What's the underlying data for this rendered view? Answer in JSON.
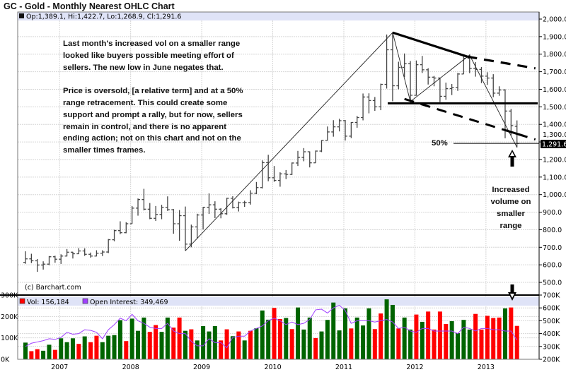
{
  "header": {
    "title": "GC - Gold - Monthly Nearest OHLC Chart",
    "ohlc_legend": "Op:1,389.1, Hi:1,422.7, Lo:1,268.9, Cl:1,291.6",
    "last_price_label": "1,291.6",
    "copyright": "(c) Barchart.com"
  },
  "annotations": {
    "main_note": [
      "Last month's increased vol on a smaller range",
      "looked like buyers possible meeting effort of",
      "sellers.  The new low in June negates that.",
      "",
      "Price is oversold, [a relative term] and at a 50%",
      "range retracement.  This could create some",
      "support and prompt a rally, but for now, sellers",
      "remain in control, and there is no apparent",
      "ending action; not on this chart and not on the",
      "smaller times frames."
    ],
    "fifty_label": "50%",
    "volume_note": [
      "Increased",
      "volume on",
      "smaller",
      "range"
    ]
  },
  "volume_legend": {
    "vol_label": "Vol: 156,184",
    "oi_label": "Open Interest: 349,469"
  },
  "colors": {
    "up_volume": "#006400",
    "down_volume": "#ff0000",
    "open_interest": "#a040ff",
    "legend_band": "#dfe3f7",
    "price_bar": "#444444",
    "last_price_bg": "#000000"
  },
  "chart_data": [
    {
      "type": "ohlc",
      "period": "monthly",
      "start": "2006-07",
      "end": "2013-06",
      "ylim": [
        500,
        2000
      ],
      "y_ticks": [
        "2,000.0",
        "1,900.0",
        "1,800.0",
        "1,700.0",
        "1,600.0",
        "1,500.0",
        "1,400.0",
        "1,300.0",
        "1,200.0",
        "1,100.0",
        "1,000.0",
        "900.0",
        "800.0",
        "700.0",
        "600.0",
        "500.0"
      ],
      "x_ticks": [
        "2007",
        "2008",
        "2009",
        "2010",
        "2011",
        "2012",
        "2013"
      ],
      "grid": true,
      "ohlc": [
        [
          614,
          677,
          606,
          634
        ],
        [
          634,
          663,
          610,
          623
        ],
        [
          623,
          633,
          560,
          599
        ],
        [
          599,
          620,
          573,
          604
        ],
        [
          604,
          650,
          598,
          646
        ],
        [
          646,
          652,
          612,
          632
        ],
        [
          632,
          660,
          605,
          650
        ],
        [
          650,
          690,
          648,
          672
        ],
        [
          672,
          674,
          636,
          663
        ],
        [
          663,
          695,
          662,
          679
        ],
        [
          679,
          694,
          651,
          660
        ],
        [
          660,
          670,
          641,
          650
        ],
        [
          650,
          683,
          648,
          666
        ],
        [
          666,
          683,
          650,
          673
        ],
        [
          673,
          747,
          667,
          743
        ],
        [
          743,
          800,
          734,
          795
        ],
        [
          795,
          848,
          775,
          783
        ],
        [
          783,
          843,
          780,
          834
        ],
        [
          834,
          935,
          834,
          923
        ],
        [
          923,
          978,
          880,
          972
        ],
        [
          972,
          1033,
          910,
          917
        ],
        [
          917,
          952,
          860,
          865
        ],
        [
          865,
          935,
          850,
          887
        ],
        [
          887,
          942,
          860,
          928
        ],
        [
          928,
          990,
          907,
          914
        ],
        [
          914,
          918,
          777,
          834
        ],
        [
          834,
          912,
          737,
          880
        ],
        [
          880,
          932,
          681,
          718
        ],
        [
          718,
          829,
          700,
          816
        ],
        [
          816,
          891,
          750,
          884
        ],
        [
          884,
          930,
          802,
          928
        ],
        [
          928,
          1007,
          890,
          942
        ],
        [
          942,
          962,
          866,
          917
        ],
        [
          917,
          923,
          865,
          891
        ],
        [
          891,
          982,
          885,
          979
        ],
        [
          979,
          991,
          921,
          927
        ],
        [
          927,
          960,
          904,
          954
        ],
        [
          954,
          965,
          930,
          955
        ],
        [
          955,
          1025,
          943,
          1008
        ],
        [
          1008,
          1072,
          1003,
          1040
        ],
        [
          1040,
          1195,
          1035,
          1182
        ],
        [
          1182,
          1227,
          1076,
          1096
        ],
        [
          1096,
          1163,
          1073,
          1081
        ],
        [
          1081,
          1127,
          1045,
          1118
        ],
        [
          1118,
          1140,
          1088,
          1115
        ],
        [
          1115,
          1183,
          1112,
          1180
        ],
        [
          1180,
          1249,
          1163,
          1212
        ],
        [
          1212,
          1265,
          1190,
          1244
        ],
        [
          1244,
          1246,
          1155,
          1181
        ],
        [
          1181,
          1251,
          1181,
          1248
        ],
        [
          1248,
          1310,
          1242,
          1309
        ],
        [
          1309,
          1388,
          1307,
          1357
        ],
        [
          1357,
          1424,
          1330,
          1386
        ],
        [
          1386,
          1432,
          1360,
          1421
        ],
        [
          1421,
          1425,
          1308,
          1333
        ],
        [
          1333,
          1413,
          1322,
          1411
        ],
        [
          1411,
          1448,
          1381,
          1439
        ],
        [
          1439,
          1576,
          1423,
          1556
        ],
        [
          1556,
          1577,
          1463,
          1536
        ],
        [
          1536,
          1556,
          1477,
          1500
        ],
        [
          1500,
          1632,
          1481,
          1628
        ],
        [
          1628,
          1912,
          1604,
          1825
        ],
        [
          1825,
          1923,
          1532,
          1620
        ],
        [
          1620,
          1757,
          1600,
          1725
        ],
        [
          1725,
          1804,
          1670,
          1746
        ],
        [
          1746,
          1761,
          1523,
          1566
        ],
        [
          1566,
          1764,
          1563,
          1740
        ],
        [
          1740,
          1790,
          1693,
          1711
        ],
        [
          1711,
          1720,
          1627,
          1669
        ],
        [
          1669,
          1676,
          1617,
          1664
        ],
        [
          1664,
          1667,
          1527,
          1560
        ],
        [
          1560,
          1638,
          1540,
          1604
        ],
        [
          1604,
          1630,
          1567,
          1610
        ],
        [
          1610,
          1693,
          1591,
          1687
        ],
        [
          1687,
          1796,
          1687,
          1776
        ],
        [
          1776,
          1798,
          1692,
          1719
        ],
        [
          1719,
          1755,
          1672,
          1713
        ],
        [
          1713,
          1727,
          1635,
          1675
        ],
        [
          1675,
          1697,
          1625,
          1664
        ],
        [
          1664,
          1686,
          1555,
          1578
        ],
        [
          1578,
          1617,
          1563,
          1596
        ],
        [
          1596,
          1600,
          1321,
          1476
        ],
        [
          1476,
          1488,
          1338,
          1393
        ],
        [
          1389.1,
          1422.7,
          1268.9,
          1291.6
        ]
      ],
      "drawn_lines": {
        "zigzag": [
          [
            "2008-10",
            680
          ],
          [
            "2011-09",
            1923
          ],
          [
            "2011-12",
            1530
          ],
          [
            "2012-10",
            1795
          ],
          [
            "2013-06",
            1268.9
          ]
        ],
        "upper_trend": [
          [
            "2011-09",
            1923
          ],
          [
            "2013-06",
            1695
          ]
        ],
        "support_horizontal": 1520,
        "lower_trend": [
          [
            "2011-11",
            1545
          ],
          [
            "2013-06",
            1330
          ]
        ],
        "fifty_percent_level": 1291.6
      }
    },
    {
      "type": "bar",
      "name": "Vol",
      "ylim": [
        0,
        300
      ],
      "y_unit": "K",
      "y_ticks": [
        "300K",
        "200K",
        "100K",
        "0K"
      ],
      "values": [
        78,
        38,
        47,
        40,
        68,
        44,
        98,
        80,
        98,
        72,
        107,
        80,
        110,
        80,
        110,
        113,
        183,
        85,
        190,
        133,
        195,
        128,
        160,
        128,
        195,
        148,
        195,
        133,
        140,
        88,
        155,
        130,
        155,
        88,
        140,
        108,
        130,
        88,
        133,
        145,
        228,
        185,
        240,
        188,
        193,
        141,
        242,
        139,
        195,
        99,
        130,
        184,
        265,
        135,
        238,
        144,
        195,
        158,
        238,
        141,
        214,
        280,
        254,
        144,
        195,
        139,
        209,
        175,
        223,
        139,
        223,
        165,
        178,
        122,
        184,
        139,
        212,
        139,
        203,
        193,
        195,
        238,
        242,
        156
      ],
      "direction": "grrggr gggrgrrggggrg ggrrggrrgrgg ggrrgrgrgggr rgrgggrggggg rgggrrggrggr grrrrggggrrr rrgrrr"
    },
    {
      "type": "line",
      "name": "Open Interest",
      "ylim": [
        200,
        700
      ],
      "y_unit": "K",
      "y_ticks": [
        "700K",
        "600K",
        "500K",
        "400K",
        "300K",
        "200K"
      ],
      "values": [
        300,
        325,
        335,
        345,
        360,
        355,
        370,
        410,
        395,
        400,
        430,
        425,
        410,
        360,
        430,
        470,
        520,
        500,
        550,
        500,
        480,
        450,
        440,
        440,
        480,
        420,
        400,
        400,
        340,
        305,
        305,
        360,
        330,
        330,
        290,
        370,
        380,
        380,
        420,
        440,
        460,
        500,
        520,
        500,
        470,
        490,
        470,
        480,
        510,
        585,
        590,
        560,
        600,
        620,
        580,
        480,
        500,
        500,
        500,
        490,
        500,
        510,
        490,
        440,
        450,
        420,
        410,
        440,
        440,
        420,
        420,
        420,
        420,
        400,
        450,
        440,
        420,
        440,
        440,
        430,
        430,
        420,
        420,
        349
      ]
    }
  ]
}
